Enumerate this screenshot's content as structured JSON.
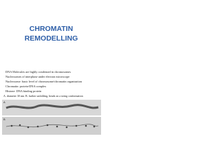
{
  "title_lines": [
    "CHROMATIN",
    "REMODELLING"
  ],
  "body_lines": [
    "DNA Molecules are highly condensed in chromosomes",
    "Nucleosomes of interphase under electron microscope",
    "Nucleosome: basic level of chromosome/chromatin organization",
    "Chromatin: protein-DNA complex",
    "Histone: DNA binding protein",
    "A. diameter 30 nm. B. further unfolding, beads on a string conformation"
  ],
  "figure": {
    "panels": [
      "A",
      "B"
    ]
  }
}
